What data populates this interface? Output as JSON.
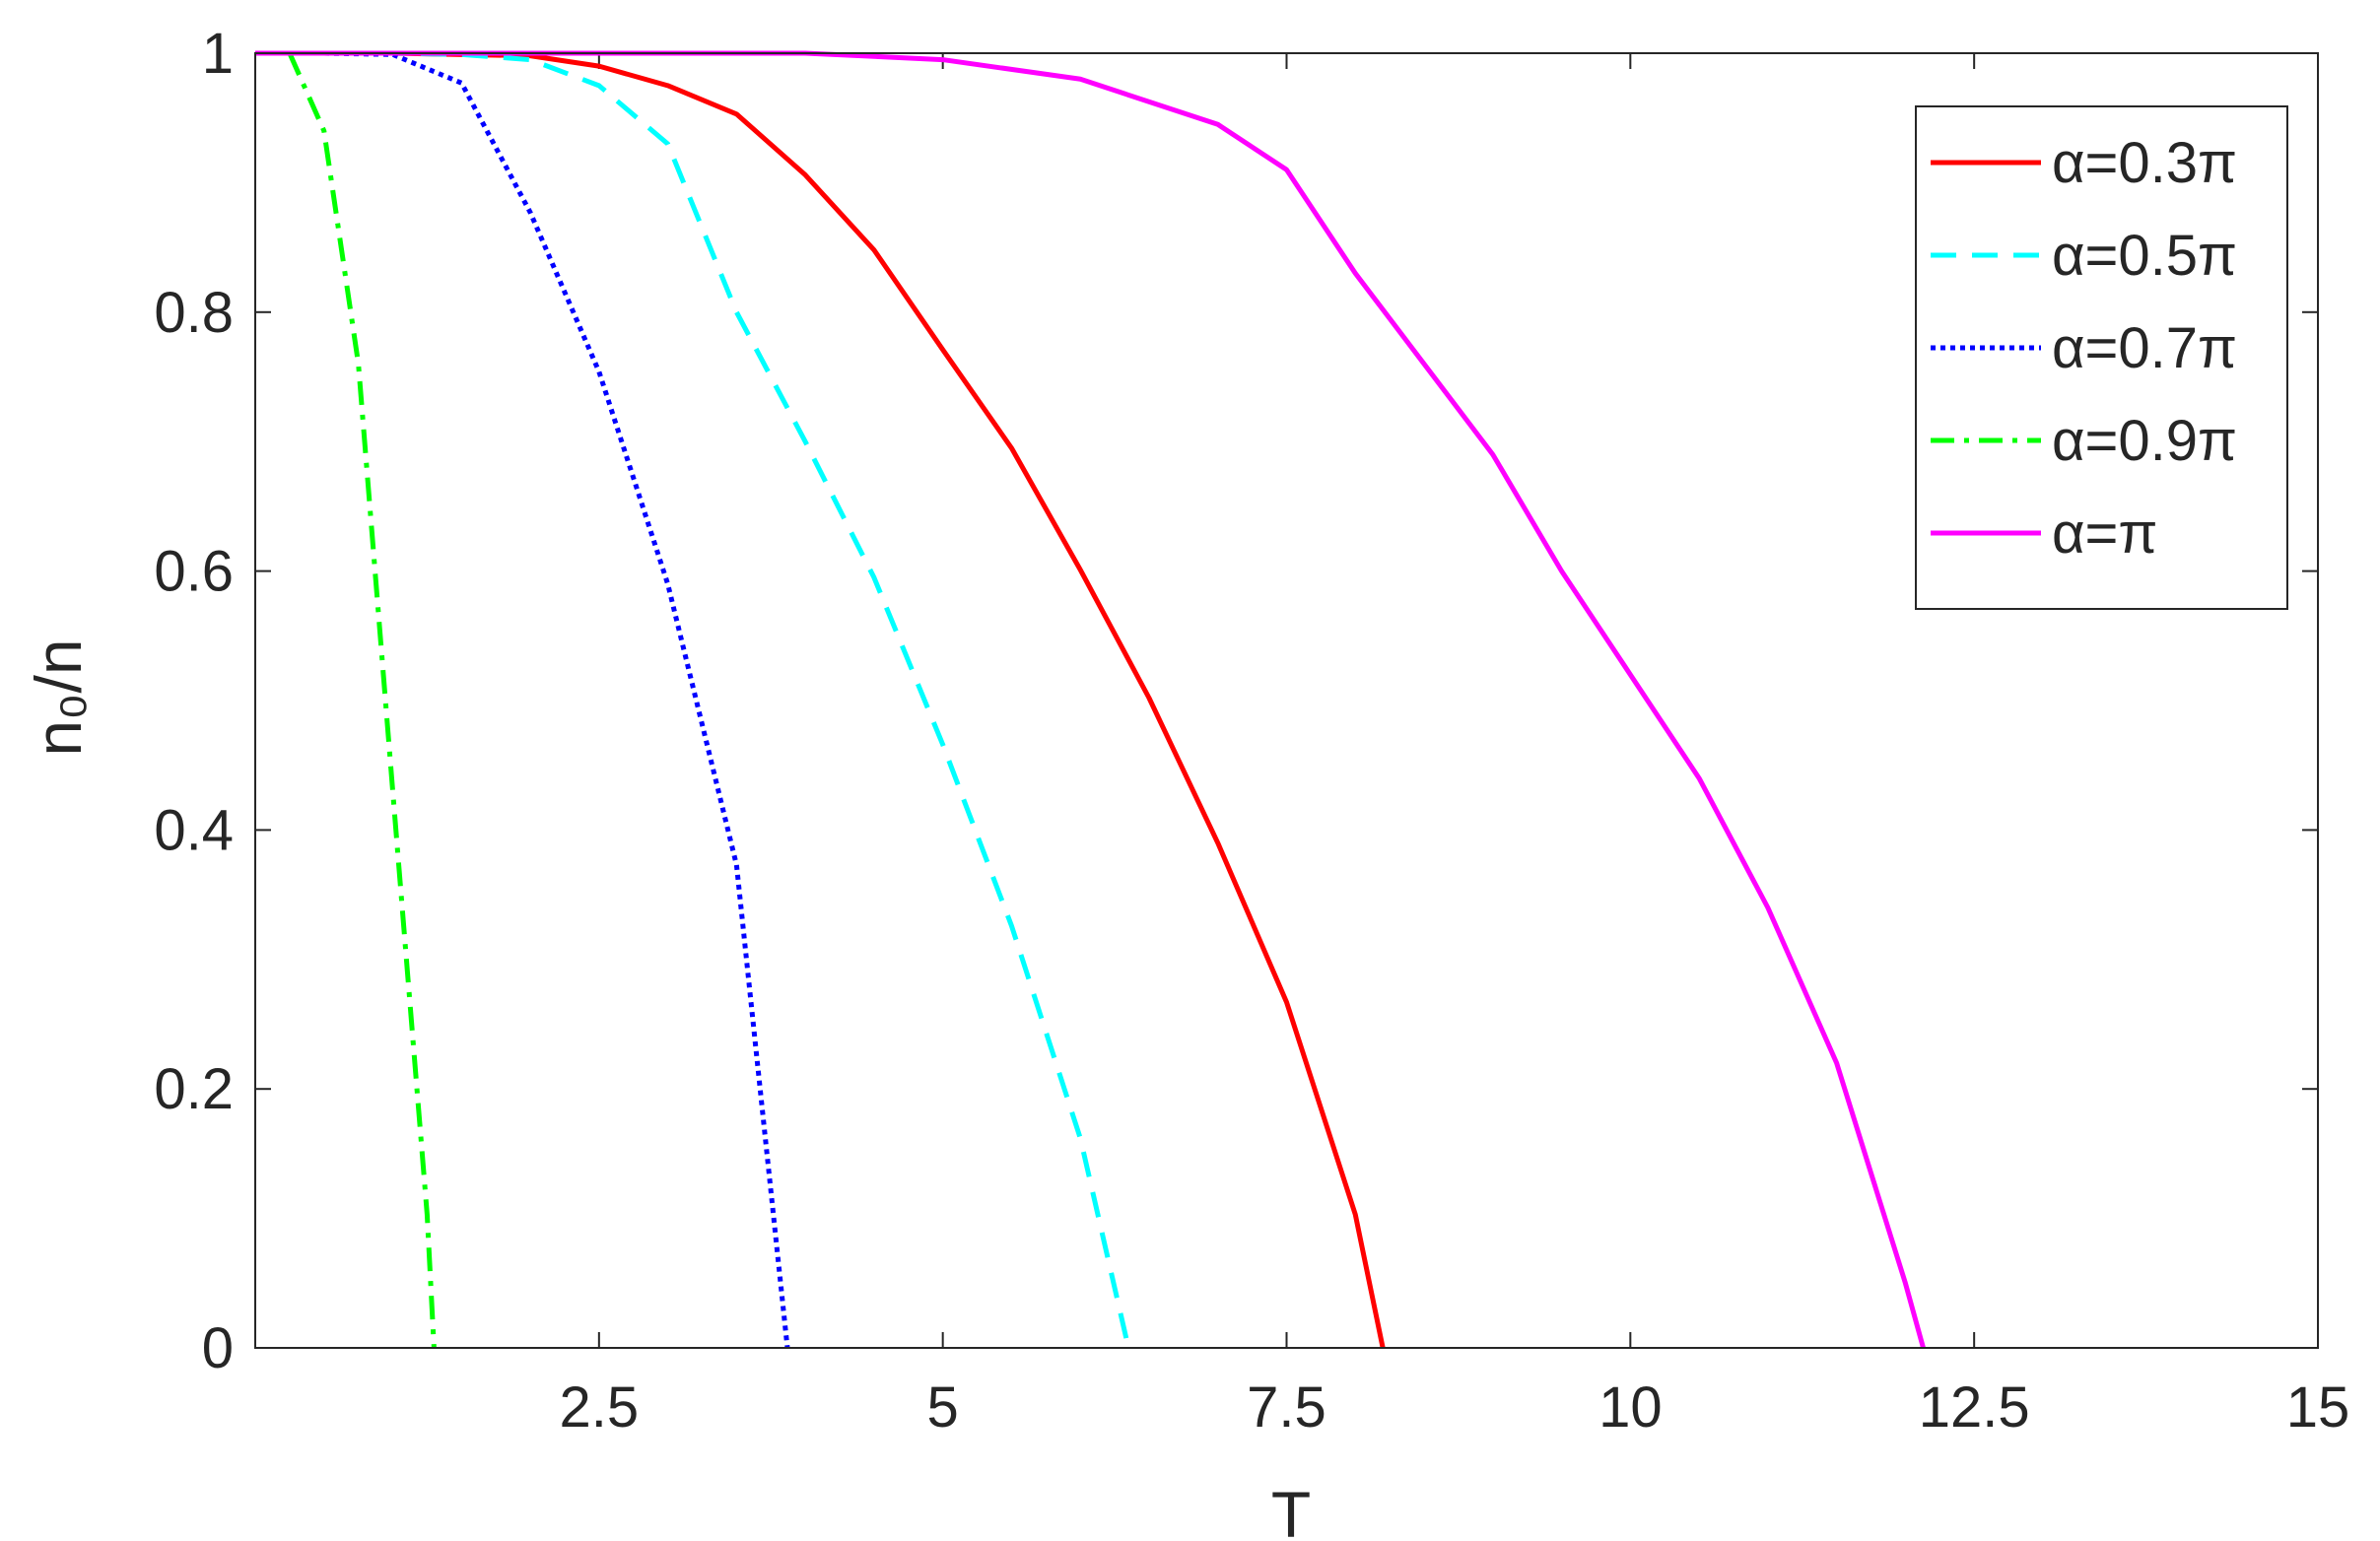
{
  "chart_data": {
    "type": "line",
    "xlabel": "T",
    "ylabel": "n₀/n",
    "xlim": [
      0,
      15
    ],
    "ylim": [
      0,
      1
    ],
    "xticks": [
      2.5,
      5,
      7.5,
      10,
      12.5,
      15
    ],
    "yticks": [
      0,
      0.2,
      0.4,
      0.6,
      0.8,
      1
    ],
    "legend": "upper right",
    "series": [
      {
        "name": "α=0.3π",
        "color": "#ff0000",
        "linestyle": "solid",
        "x": [
          0,
          1,
          1.5,
          2,
          2.5,
          3,
          3.5,
          4,
          4.5,
          5,
          5.5,
          6,
          6.5,
          7,
          7.5,
          8,
          8.2
        ],
        "values": [
          1,
          1,
          0.999,
          0.998,
          0.99,
          0.975,
          0.953,
          0.906,
          0.848,
          0.771,
          0.695,
          0.601,
          0.502,
          0.39,
          0.267,
          0.103,
          0
        ]
      },
      {
        "name": "α=0.5π",
        "color": "#00ffff",
        "linestyle": "dashed",
        "x": [
          0,
          1,
          1.5,
          2,
          2.5,
          3,
          3.5,
          4,
          4.5,
          5,
          5.5,
          6,
          6.35
        ],
        "values": [
          1,
          1,
          0.999,
          0.995,
          0.975,
          0.93,
          0.8,
          0.7,
          0.595,
          0.466,
          0.326,
          0.162,
          0
        ]
      },
      {
        "name": "α=0.7π",
        "color": "#0000ff",
        "linestyle": "dotted",
        "x": [
          0,
          0.5,
          1,
          1.5,
          2,
          2.5,
          3,
          3.5,
          3.87
        ],
        "values": [
          1,
          1,
          0.999,
          0.977,
          0.877,
          0.754,
          0.59,
          0.373,
          0
        ]
      },
      {
        "name": "α=0.9π",
        "color": "#00ff00",
        "linestyle": "dashdot",
        "x": [
          0.25,
          0.5,
          0.75,
          1,
          1.25,
          1.3
        ],
        "values": [
          1,
          0.94,
          0.76,
          0.43,
          0.103,
          0
        ]
      },
      {
        "name": "α=π",
        "color": "#ff00ff",
        "linestyle": "solid",
        "x": [
          0,
          4,
          5,
          6,
          7,
          7.5,
          8,
          8.5,
          9,
          9.5,
          10,
          10.5,
          11,
          11.5,
          12,
          12.13
        ],
        "values": [
          1,
          1,
          0.995,
          0.98,
          0.945,
          0.91,
          0.83,
          0.76,
          0.69,
          0.6,
          0.52,
          0.44,
          0.34,
          0.22,
          0.05,
          0
        ]
      }
    ]
  }
}
